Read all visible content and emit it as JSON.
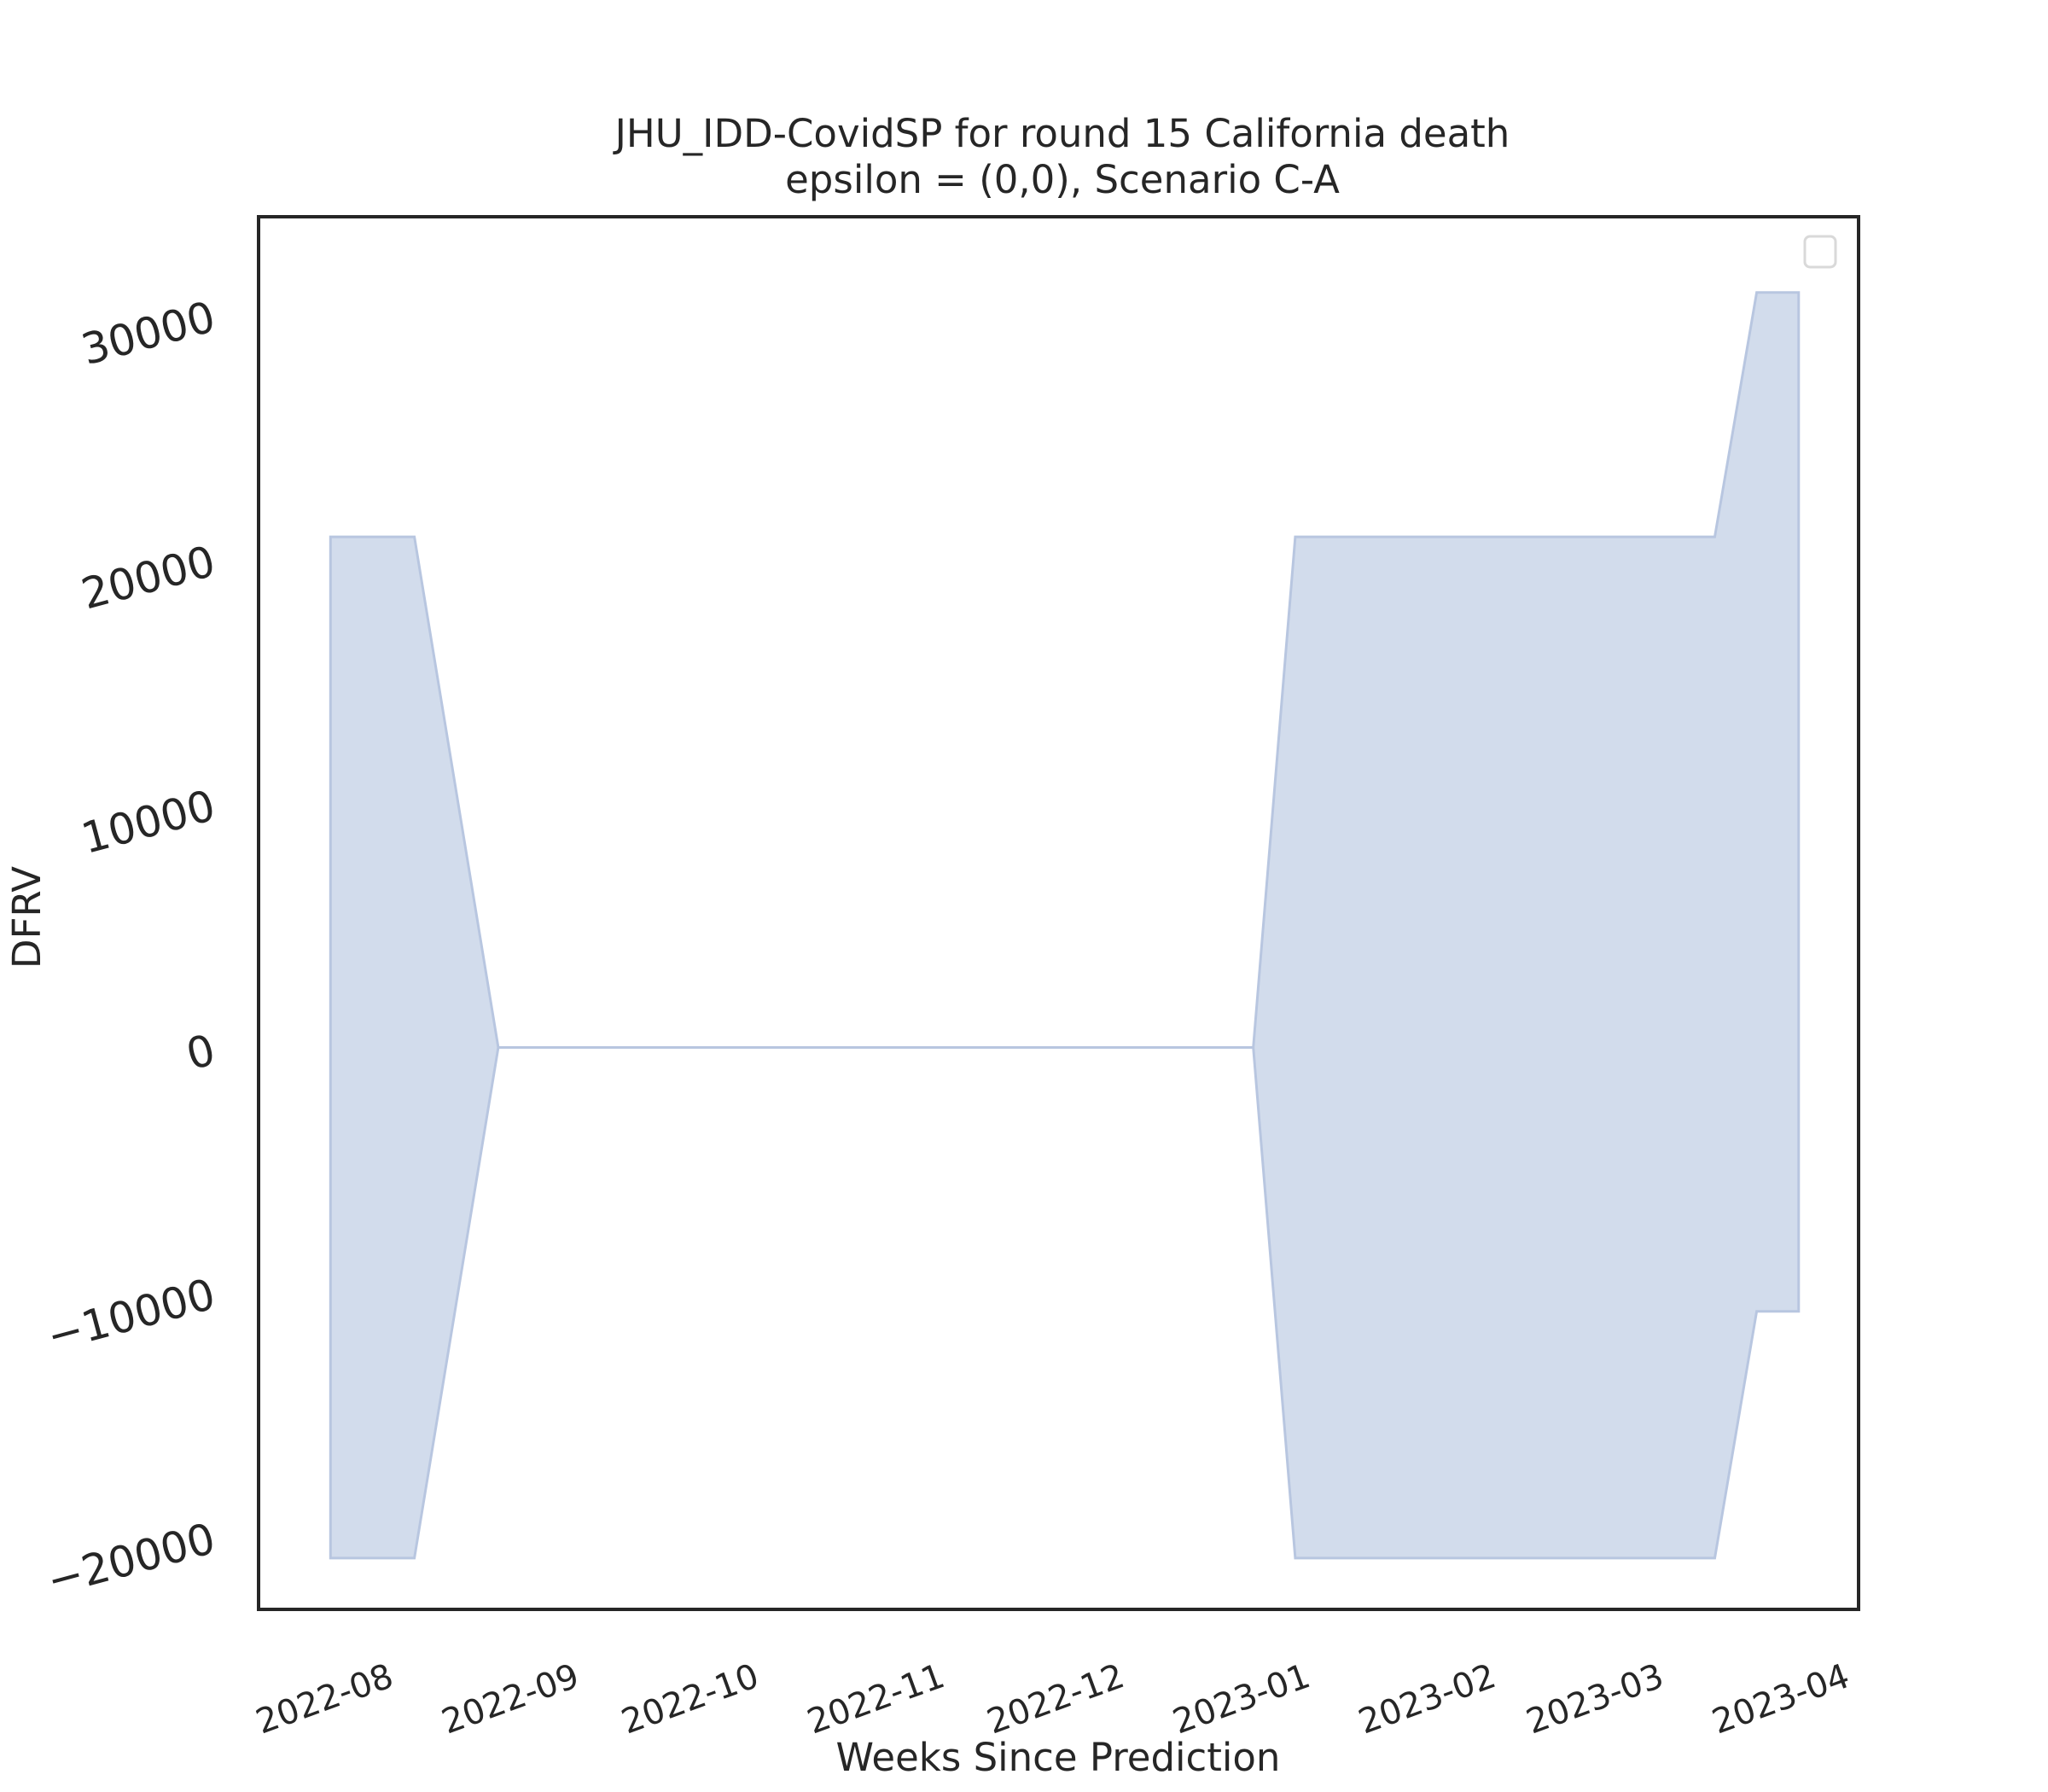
{
  "chart_data": {
    "type": "area",
    "title": "JHU_IDD-CovidSP for round 15 California death",
    "subtitle": "epsilon = (0,0), Scenario C-A",
    "xlabel": "Weeks Since Prediction",
    "ylabel": "DFRV",
    "x_ticks": [
      "2022-08",
      "2022-09",
      "2022-10",
      "2022-11",
      "2022-12",
      "2023-01",
      "2023-02",
      "2023-03",
      "2023-04"
    ],
    "y_ticks": [
      -20000,
      -10000,
      0,
      10000,
      20000,
      30000
    ],
    "y_tick_labels": [
      "−20000",
      "−10000",
      "0",
      "10000",
      "20000",
      "30000"
    ],
    "ylim": [
      -23000,
      34000
    ],
    "xlim": [
      "2022-07-12",
      "2023-04-05"
    ],
    "grid": false,
    "legend": "top-right (empty)",
    "fill_color": "#d2dcec",
    "edge_color": "#b8c6e0",
    "band": {
      "x": [
        "2022-07-24",
        "2022-08-07",
        "2022-08-21",
        "2022-09-04",
        "2022-09-18",
        "2022-10-02",
        "2022-10-16",
        "2022-10-30",
        "2022-11-13",
        "2022-11-27",
        "2022-12-11",
        "2022-12-25",
        "2023-01-01",
        "2023-01-15",
        "2023-01-29",
        "2023-02-12",
        "2023-02-26",
        "2023-03-12",
        "2023-03-19",
        "2023-03-26"
      ],
      "upper": [
        20900,
        20900,
        0,
        0,
        0,
        0,
        0,
        0,
        0,
        0,
        0,
        0,
        20900,
        20900,
        20900,
        20900,
        20900,
        20900,
        30900,
        30900
      ],
      "lower": [
        -20900,
        -20900,
        0,
        0,
        0,
        0,
        0,
        0,
        0,
        0,
        0,
        0,
        -20900,
        -20900,
        -20900,
        -20900,
        -20900,
        -20900,
        -10800,
        -10800
      ]
    }
  }
}
